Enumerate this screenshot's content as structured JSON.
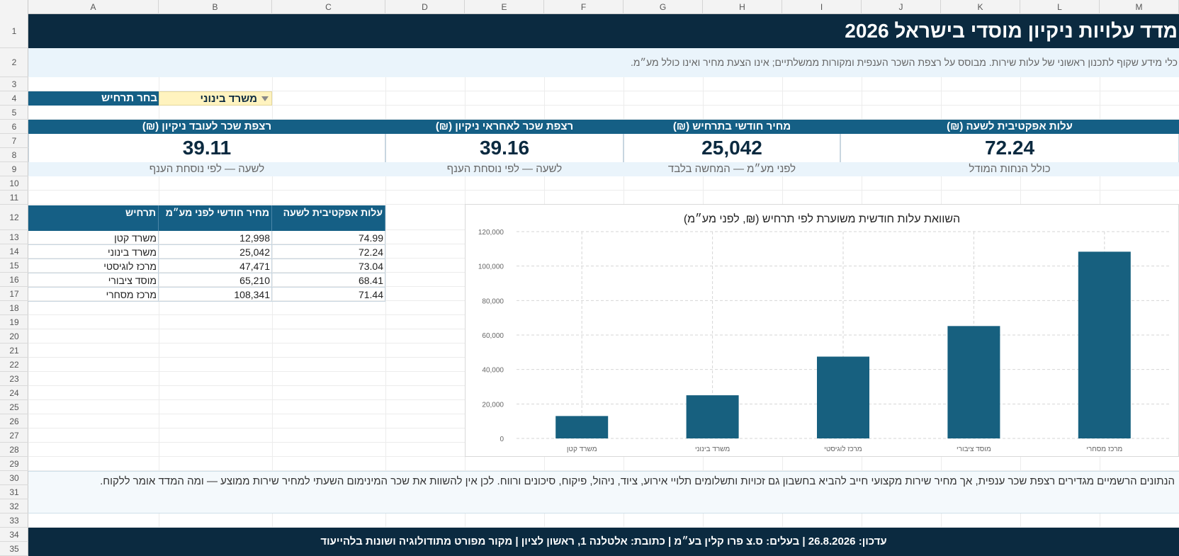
{
  "columns": [
    "A",
    "B",
    "C",
    "D",
    "E",
    "F",
    "G",
    "H",
    "I",
    "J",
    "K",
    "L",
    "M"
  ],
  "rows": [
    "1",
    "2",
    "3",
    "4",
    "5",
    "6",
    "7",
    "8",
    "9",
    "10",
    "11",
    "12",
    "13",
    "14",
    "15",
    "16",
    "17",
    "18",
    "19",
    "20",
    "21",
    "22",
    "23",
    "24",
    "25",
    "26",
    "27",
    "28",
    "29",
    "30",
    "31",
    "32",
    "33",
    "34",
    "35"
  ],
  "header": {
    "title": "מדד עלויות ניקיון מוסדי בישראל 2026",
    "subtitle": "כלי מידע שקוף לתכנון ראשוני של עלות שירות. מבוסס על רצפת השכר הענפית ומקורות ממשלתיים; אינו הצעת מחיר ואינו כולל מע״מ."
  },
  "selector": {
    "label": "בחר תרחיש",
    "value": "משרד בינוני"
  },
  "kpis": [
    {
      "head": "עלות אפקטיבית לשעה (₪)",
      "value": "72.24",
      "note": "כולל הנחות המודל"
    },
    {
      "head": "מחיר חודשי בתרחיש (₪)",
      "value": "25,042",
      "note": "לפני מע״מ — המחשה בלבד"
    },
    {
      "head": "רצפת שכר לאחראי ניקיון (₪)",
      "value": "39.16",
      "note": "לשעה — לפי נוסחת הענף"
    },
    {
      "head": "רצפת שכר לעובד ניקיון (₪)",
      "value": "39.11",
      "note": "לשעה — לפי נוסחת הענף"
    }
  ],
  "table": {
    "headers": [
      "תרחיש",
      "מחיר חודשי לפני מע״מ",
      "עלות אפקטיבית לשעה"
    ],
    "rows": [
      [
        "משרד קטן",
        "12,998",
        "74.99"
      ],
      [
        "משרד בינוני",
        "25,042",
        "72.24"
      ],
      [
        "מרכז לוגיסטי",
        "47,471",
        "73.04"
      ],
      [
        "מוסד ציבורי",
        "65,210",
        "68.41"
      ],
      [
        "מרכז מסחרי",
        "108,341",
        "71.44"
      ]
    ]
  },
  "chart_data": {
    "type": "bar",
    "title": "השוואת עלות חודשית משוערת לפי תרחיש (₪, לפני מע״מ)",
    "categories": [
      "משרד קטן",
      "משרד בינוני",
      "מרכז לוגיסטי",
      "מוסד ציבורי",
      "מרכז מסחרי"
    ],
    "values": [
      12998,
      25042,
      47471,
      65210,
      108341
    ],
    "yticks": [
      "0",
      "20,000",
      "40,000",
      "60,000",
      "80,000",
      "100,000",
      "120,000"
    ],
    "ylim": [
      0,
      120000
    ],
    "grid": true,
    "legend": "none",
    "bar_color": "#17607f"
  },
  "note": "הנתונים הרשמיים מגדירים רצפת שכר ענפית, אך מחיר שירות מקצועי חייב להביא בחשבון גם זכויות ותשלומים תלויי אירוע, ציוד, ניהול, פיקוח, סיכונים ורווח. לכן אין להשוות את שכר המינימום השעתי למחיר שירות ממוצע — ומה המדד אומר ללקוח.",
  "footer": "עדכון: 26.8.2026 | בעלים: ס.צ פרו קלין בע״מ | כתובת: אלטלנה 1, ראשון לציון | מקור מפורט מתודולוגיה ושונות בלהייעוד"
}
